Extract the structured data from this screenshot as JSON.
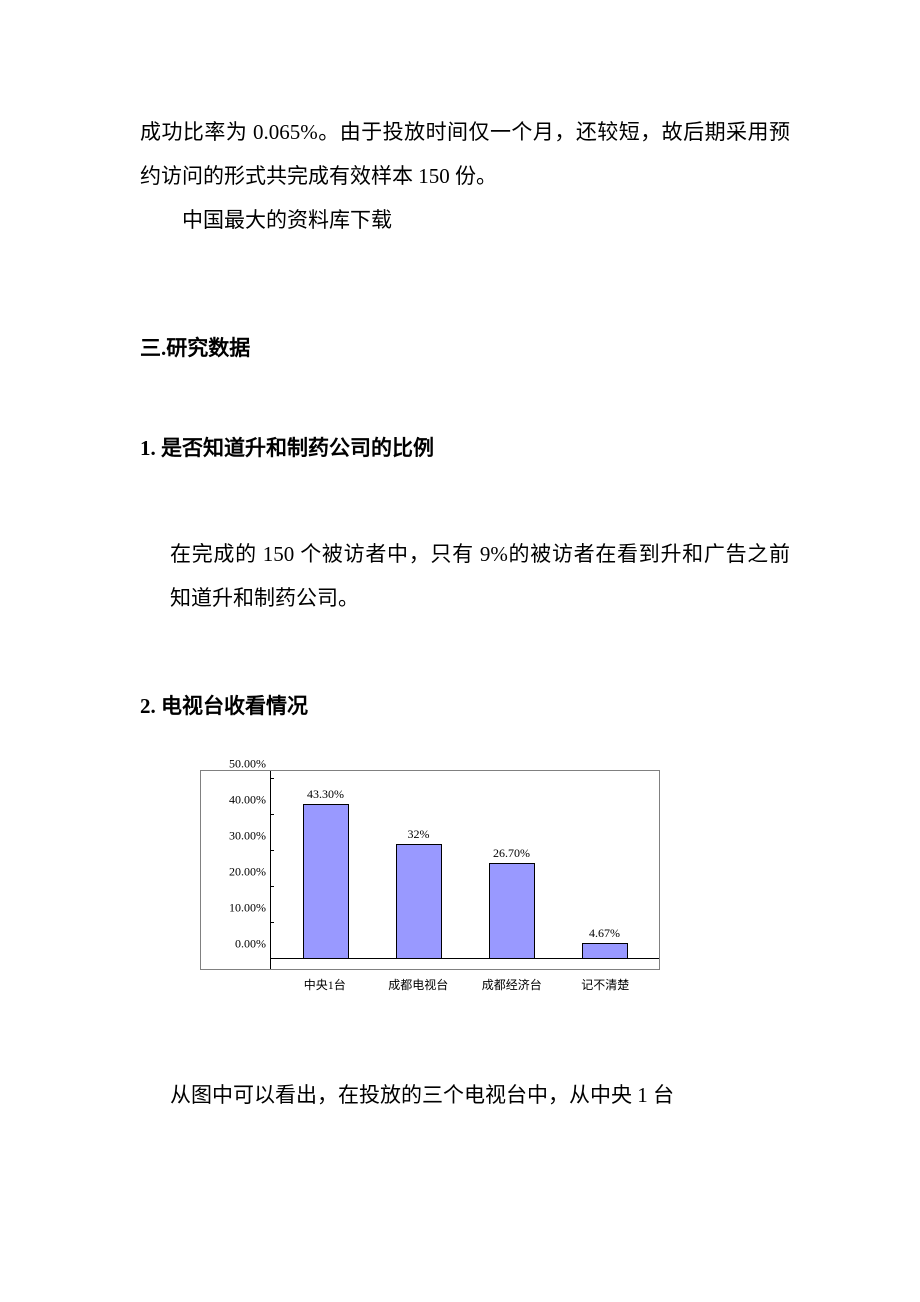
{
  "intro": {
    "line1": "成功比率为 0.065%。由于投放时间仅一个月，还较短，故后期采用预约访问的形式共完成有效样本 150 份。",
    "line2": "中国最大的资料库下载"
  },
  "section3": {
    "heading": "三.研究数据",
    "sub1": {
      "heading": "1. 是否知道升和制药公司的比例",
      "body": "在完成的 150 个被访者中，只有 9%的被访者在看到升和广告之前知道升和制药公司。"
    },
    "sub2": {
      "heading": "2. 电视台收看情况",
      "chart": {
        "type": "bar",
        "ymax": 50,
        "ytick_step": 10,
        "ytick_labels": [
          "0.00%",
          "10.00%",
          "20.00%",
          "30.00%",
          "40.00%",
          "50.00%"
        ],
        "bar_color": "#9999ff",
        "border_color": "#808080",
        "axis_color": "#000000",
        "background_color": "#ffffff",
        "label_fontsize": 12,
        "bars": [
          {
            "category": "中央1台",
            "value": 43.3,
            "label": "43.30%"
          },
          {
            "category": "成都电视台",
            "value": 32.0,
            "label": "32%"
          },
          {
            "category": "成都经济台",
            "value": 26.7,
            "label": "26.70%"
          },
          {
            "category": "记不清楚",
            "value": 4.67,
            "label": "4.67%"
          }
        ]
      },
      "conclusion": "从图中可以看出，在投放的三个电视台中，从中央 1 台"
    }
  }
}
